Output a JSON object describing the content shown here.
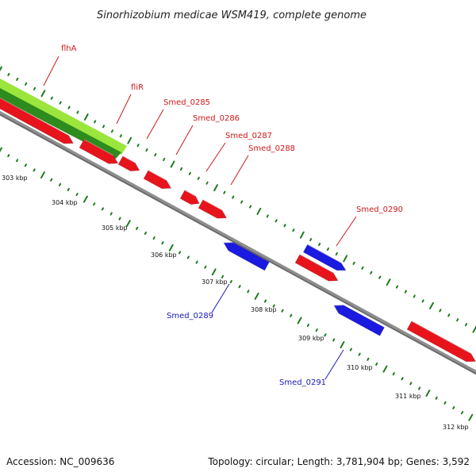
{
  "title": "Sinorhizobium medicae WSM419, complete genome",
  "footer": {
    "accession": "Accession: NC_009636",
    "summary": "Topology: circular; Length: 3,781,904 bp; Genes: 3,592"
  },
  "ticks": [
    "303 kbp",
    "304 kbp",
    "305 kbp",
    "306 kbp",
    "307 kbp",
    "308 kbp",
    "309 kbp",
    "310 kbp",
    "311 kbp",
    "312 kbp"
  ],
  "genes": [
    {
      "name": "flhA",
      "strand": "+",
      "color": "#e8141c"
    },
    {
      "name": "fliR",
      "strand": "+",
      "color": "#e8141c"
    },
    {
      "name": "Smed_0285",
      "strand": "+",
      "color": "#e8141c"
    },
    {
      "name": "Smed_0286",
      "strand": "+",
      "color": "#e8141c"
    },
    {
      "name": "Smed_0287",
      "strand": "+",
      "color": "#e8141c"
    },
    {
      "name": "Smed_0288",
      "strand": "+",
      "color": "#e8141c"
    },
    {
      "name": "Smed_0289",
      "strand": "-",
      "color": "#1a1ae0"
    },
    {
      "name": "Smed_0290",
      "strand": "+",
      "color": "#e8141c"
    },
    {
      "name": "Smed_0291",
      "strand": "-",
      "color": "#1a1ae0"
    }
  ],
  "colors": {
    "forward_gene": "#e8141c",
    "reverse_gene": "#1a1ae0",
    "backbone": "#8f8f8f",
    "gc_track_light": "#9be63c",
    "gc_track_dark": "#2e8b1e",
    "tick_marks": "#1f7a1f",
    "forward_label": "#d01818",
    "reverse_label": "#1818c0"
  }
}
